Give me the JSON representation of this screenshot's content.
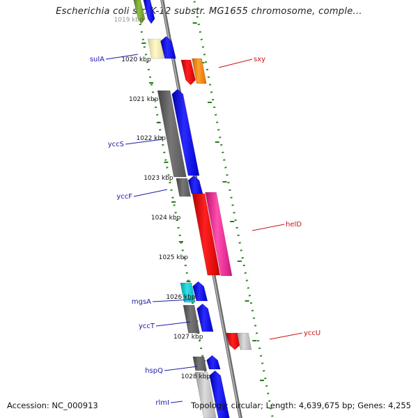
{
  "title": "Escherichia coli str. K-12 substr. MG1655 chromosome, comple...",
  "footer": {
    "accession": "Accession: NC_000913",
    "topology": "Topology: circular; Length: 4,639,675 bp; Genes: 4,255"
  },
  "ticks": [
    "1019 kbp",
    "1020 kbp",
    "1021 kbp",
    "1022 kbp",
    "1023 kbp",
    "1024 kbp",
    "1025 kbp",
    "1026 kbp",
    "1027 kbp",
    "1028 kbp"
  ],
  "genes_left": [
    "sulA",
    "yccS",
    "yccF",
    "mgsA",
    "yccT",
    "hspQ",
    "rlmI"
  ],
  "genes_right": [
    "sxy",
    "helD",
    "yccU"
  ],
  "colors": {
    "backbone": "#8a8a8a",
    "dotted_border": "#2e8b22",
    "left_label": "#1a1aa6",
    "right_label": "#cc1111"
  }
}
